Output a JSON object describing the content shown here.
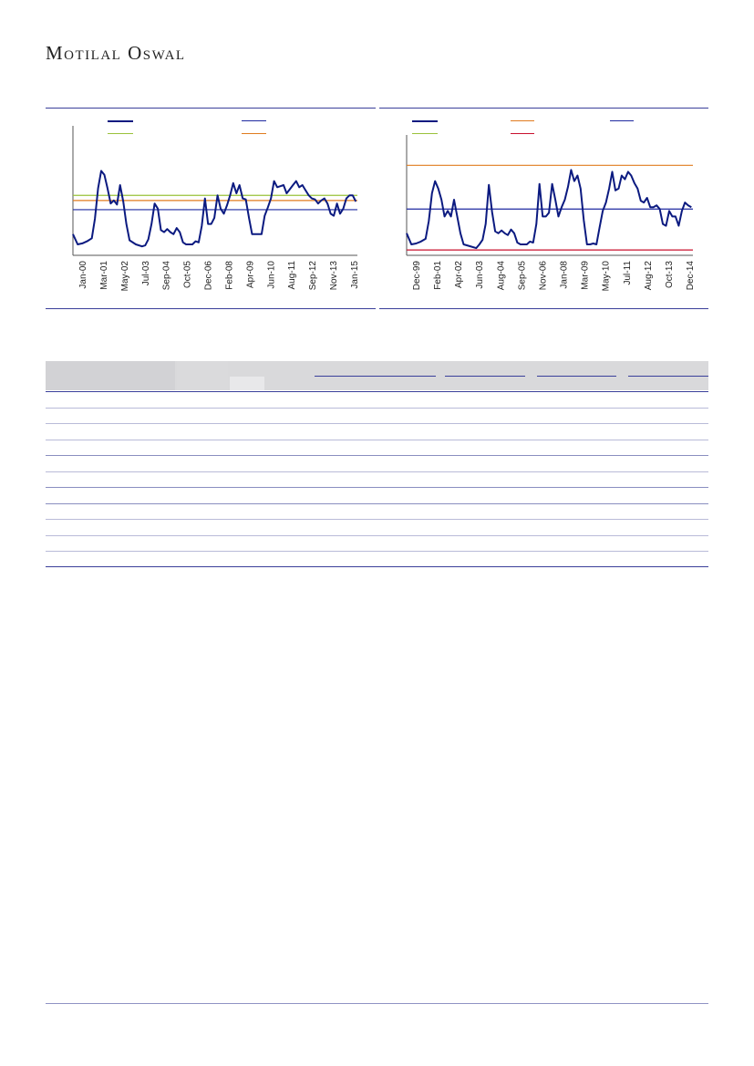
{
  "brand": {
    "name": "Motilal Oswal"
  },
  "colors": {
    "series": "#0b1a80",
    "avg": "#1f2aa0",
    "plus1sd": "#9ac23a",
    "minus1sd_or_peak": "#e07b1f",
    "low": "#c8102e",
    "rule": "#3a3f9a"
  },
  "chart_data": [
    {
      "type": "line",
      "x_tick_labels": [
        "Jan-00",
        "Mar-01",
        "May-02",
        "Jul-03",
        "Sep-04",
        "Oct-05",
        "Dec-06",
        "Feb-08",
        "Apr-09",
        "Jun-10",
        "Aug-11",
        "Sep-12",
        "Nov-13",
        "Jan-15"
      ],
      "x_range": [
        0,
        181
      ],
      "y_range": [
        0,
        100
      ],
      "reference_lines": [
        {
          "color": "#9ac23a",
          "value": 48
        },
        {
          "color": "#e07b1f",
          "value": 43
        },
        {
          "color": "#1f2aa0",
          "value": 34
        }
      ],
      "series": [
        {
          "color": "#0b1a80",
          "points": [
            [
              0,
              10
            ],
            [
              3,
              0
            ],
            [
              6,
              1
            ],
            [
              9,
              3
            ],
            [
              12,
              6
            ],
            [
              14,
              25
            ],
            [
              16,
              55
            ],
            [
              18,
              72
            ],
            [
              20,
              68
            ],
            [
              22,
              55
            ],
            [
              24,
              40
            ],
            [
              26,
              43
            ],
            [
              28,
              39
            ],
            [
              30,
              58
            ],
            [
              32,
              42
            ],
            [
              34,
              20
            ],
            [
              36,
              4
            ],
            [
              40,
              0
            ],
            [
              44,
              -2
            ],
            [
              46,
              -1
            ],
            [
              48,
              5
            ],
            [
              50,
              20
            ],
            [
              52,
              40
            ],
            [
              54,
              35
            ],
            [
              56,
              14
            ],
            [
              58,
              12
            ],
            [
              60,
              15
            ],
            [
              62,
              12
            ],
            [
              64,
              10
            ],
            [
              66,
              16
            ],
            [
              68,
              12
            ],
            [
              70,
              2
            ],
            [
              72,
              0
            ],
            [
              76,
              0
            ],
            [
              78,
              3
            ],
            [
              80,
              2
            ],
            [
              82,
              18
            ],
            [
              84,
              45
            ],
            [
              86,
              20
            ],
            [
              88,
              20
            ],
            [
              90,
              26
            ],
            [
              92,
              48
            ],
            [
              94,
              35
            ],
            [
              96,
              30
            ],
            [
              98,
              38
            ],
            [
              100,
              48
            ],
            [
              102,
              60
            ],
            [
              104,
              50
            ],
            [
              106,
              58
            ],
            [
              108,
              45
            ],
            [
              110,
              44
            ],
            [
              112,
              26
            ],
            [
              114,
              10
            ],
            [
              116,
              10
            ],
            [
              118,
              10
            ],
            [
              120,
              10
            ],
            [
              122,
              28
            ],
            [
              124,
              36
            ],
            [
              126,
              45
            ],
            [
              128,
              62
            ],
            [
              130,
              56
            ],
            [
              132,
              57
            ],
            [
              134,
              58
            ],
            [
              136,
              50
            ],
            [
              138,
              54
            ],
            [
              140,
              58
            ],
            [
              142,
              62
            ],
            [
              144,
              56
            ],
            [
              146,
              58
            ],
            [
              148,
              53
            ],
            [
              150,
              48
            ],
            [
              152,
              45
            ],
            [
              154,
              44
            ],
            [
              156,
              40
            ],
            [
              158,
              43
            ],
            [
              160,
              45
            ],
            [
              162,
              40
            ],
            [
              164,
              30
            ],
            [
              166,
              28
            ],
            [
              168,
              40
            ],
            [
              170,
              30
            ],
            [
              172,
              35
            ],
            [
              174,
              45
            ],
            [
              176,
              48
            ],
            [
              178,
              48
            ],
            [
              180,
              42
            ]
          ]
        }
      ]
    },
    {
      "type": "line",
      "x_tick_labels": [
        "Dec-99",
        "Feb-01",
        "Apr-02",
        "Jun-03",
        "Aug-04",
        "Sep-05",
        "Nov-06",
        "Jan-08",
        "Mar-09",
        "May-10",
        "Jul-11",
        "Aug-12",
        "Oct-13",
        "Dec-14"
      ],
      "x_range": [
        0,
        181
      ],
      "y_range": [
        0,
        100
      ],
      "reference_lines": [
        {
          "color": "#e07b1f",
          "value": 85
        },
        {
          "color": "#1f2aa0",
          "value": 38
        },
        {
          "color": "#c8102e",
          "value": -6
        }
      ],
      "series": [
        {
          "color": "#0b1a80",
          "points": [
            [
              0,
              12
            ],
            [
              3,
              0
            ],
            [
              6,
              1
            ],
            [
              9,
              3
            ],
            [
              12,
              6
            ],
            [
              14,
              25
            ],
            [
              16,
              55
            ],
            [
              18,
              68
            ],
            [
              20,
              60
            ],
            [
              22,
              48
            ],
            [
              24,
              30
            ],
            [
              26,
              36
            ],
            [
              28,
              30
            ],
            [
              30,
              48
            ],
            [
              32,
              30
            ],
            [
              34,
              12
            ],
            [
              36,
              0
            ],
            [
              40,
              -2
            ],
            [
              44,
              -4
            ],
            [
              46,
              0
            ],
            [
              48,
              5
            ],
            [
              50,
              22
            ],
            [
              52,
              64
            ],
            [
              54,
              35
            ],
            [
              56,
              14
            ],
            [
              58,
              12
            ],
            [
              60,
              15
            ],
            [
              62,
              12
            ],
            [
              64,
              10
            ],
            [
              66,
              16
            ],
            [
              68,
              12
            ],
            [
              70,
              2
            ],
            [
              72,
              0
            ],
            [
              76,
              0
            ],
            [
              78,
              3
            ],
            [
              80,
              2
            ],
            [
              82,
              22
            ],
            [
              84,
              65
            ],
            [
              86,
              30
            ],
            [
              88,
              30
            ],
            [
              90,
              34
            ],
            [
              92,
              65
            ],
            [
              94,
              48
            ],
            [
              96,
              30
            ],
            [
              98,
              40
            ],
            [
              100,
              48
            ],
            [
              102,
              62
            ],
            [
              104,
              80
            ],
            [
              106,
              68
            ],
            [
              108,
              74
            ],
            [
              110,
              60
            ],
            [
              112,
              26
            ],
            [
              114,
              0
            ],
            [
              116,
              0
            ],
            [
              118,
              1
            ],
            [
              120,
              0
            ],
            [
              122,
              18
            ],
            [
              124,
              36
            ],
            [
              126,
              45
            ],
            [
              128,
              60
            ],
            [
              130,
              78
            ],
            [
              132,
              58
            ],
            [
              134,
              60
            ],
            [
              136,
              74
            ],
            [
              138,
              70
            ],
            [
              140,
              78
            ],
            [
              142,
              74
            ],
            [
              144,
              66
            ],
            [
              146,
              60
            ],
            [
              148,
              47
            ],
            [
              150,
              45
            ],
            [
              152,
              50
            ],
            [
              154,
              40
            ],
            [
              156,
              40
            ],
            [
              158,
              42
            ],
            [
              160,
              38
            ],
            [
              162,
              22
            ],
            [
              164,
              20
            ],
            [
              166,
              36
            ],
            [
              168,
              30
            ],
            [
              170,
              30
            ],
            [
              172,
              20
            ],
            [
              174,
              36
            ],
            [
              176,
              45
            ],
            [
              178,
              42
            ],
            [
              180,
              40
            ]
          ]
        }
      ]
    }
  ]
}
